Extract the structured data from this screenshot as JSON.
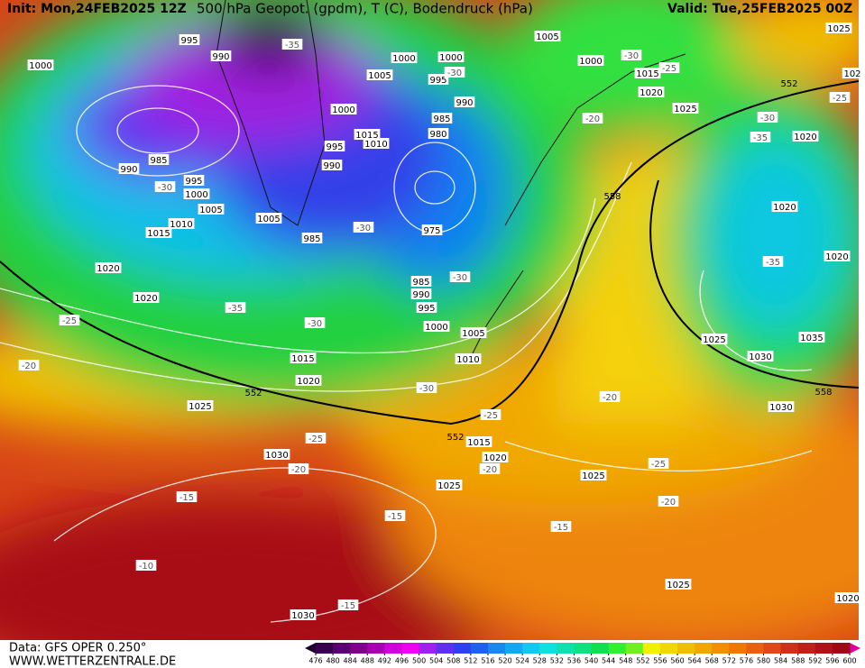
{
  "header": {
    "init": "Init: Mon,24FEB2025 12Z",
    "title": "500 hPa Geopot. (gpdm), T (C), Bodendruck (hPa)",
    "valid": "Valid: Tue,25FEB2025 00Z"
  },
  "footer": {
    "data": "Data: GFS OPER 0.250°",
    "site": "WWW.WETTERZENTRALE.DE"
  },
  "map": {
    "isobars": [
      "995",
      "990",
      "1000",
      "1005",
      "1000",
      "1000",
      "1000",
      "1005",
      "995",
      "1015",
      "1020",
      "990",
      "1025",
      "1000",
      "985",
      "1015",
      "1010",
      "995",
      "980",
      "985",
      "990",
      "990",
      "995",
      "1000",
      "1005",
      "1005",
      "1010",
      "1015",
      "985",
      "975",
      "1020",
      "1020",
      "985",
      "990",
      "995",
      "1000",
      "1005",
      "1010",
      "1015",
      "1020",
      "1025",
      "1015",
      "1020",
      "1030",
      "1025",
      "1025",
      "1025",
      "1030",
      "1020",
      "1025",
      "1020",
      "1020",
      "1020",
      "1025",
      "1030",
      "1035",
      "1030",
      "102"
    ],
    "isotherms": [
      "-35",
      "-30",
      "-30",
      "-25",
      "-25",
      "-30",
      "-35",
      "-20",
      "-30",
      "-30",
      "-30",
      "-35",
      "-30",
      "-25",
      "-20",
      "-35",
      "-30",
      "-20",
      "-25",
      "-25",
      "-20",
      "-20",
      "-25",
      "-15",
      "-15",
      "-15",
      "-20",
      "-10",
      "-15"
    ],
    "heights": [
      "552",
      "558",
      "552",
      "552",
      "558"
    ]
  },
  "colorbar": {
    "ticks": [
      476,
      480,
      484,
      488,
      492,
      496,
      500,
      504,
      508,
      512,
      516,
      520,
      524,
      528,
      532,
      536,
      540,
      544,
      548,
      552,
      556,
      560,
      564,
      568,
      572,
      576,
      580,
      584,
      588,
      592,
      596,
      600
    ],
    "colors": [
      "#3a0050",
      "#5a0070",
      "#80008c",
      "#a800b0",
      "#d000d8",
      "#f000f0",
      "#a020f0",
      "#6030f0",
      "#3040f0",
      "#2060f0",
      "#1888f0",
      "#10a8f0",
      "#10c8f0",
      "#10e0e0",
      "#10e0b0",
      "#10e080",
      "#10e050",
      "#30f030",
      "#70f020",
      "#f0f000",
      "#f0d800",
      "#f0c000",
      "#f0a800",
      "#f09000",
      "#f07800",
      "#e86010",
      "#e04818",
      "#d03018",
      "#c02018",
      "#b01018",
      "#a00818"
    ],
    "under_color": "#200030",
    "over_color": "#e000a0"
  }
}
